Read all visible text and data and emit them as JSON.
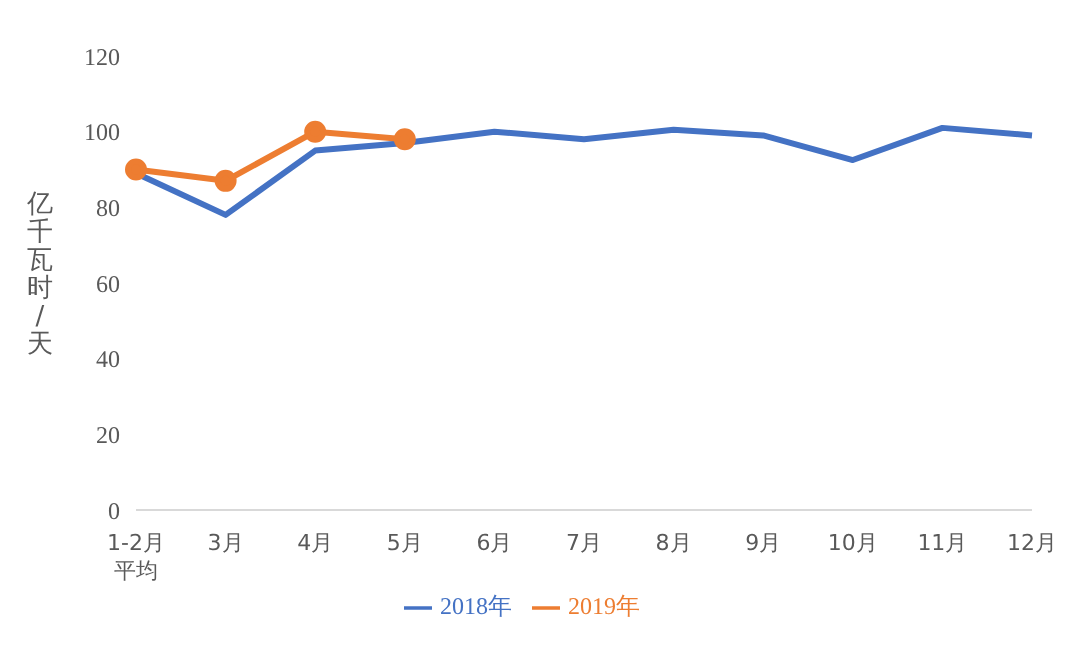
{
  "chart_data": {
    "type": "line",
    "ylabel": "亿千瓦时/天",
    "categories": [
      "1-2月平均",
      "3月",
      "4月",
      "5月",
      "6月",
      "7月",
      "8月",
      "9月",
      "10月",
      "11月",
      "12月"
    ],
    "ylim": [
      0,
      120
    ],
    "yticks": [
      0,
      20,
      40,
      60,
      80,
      100,
      120
    ],
    "legend": "bottom",
    "series": [
      {
        "name": "2018年",
        "color": "#4472c4",
        "marker": "none",
        "values": [
          89,
          78,
          95,
          97,
          100,
          98,
          100.5,
          99,
          92.5,
          101,
          99
        ]
      },
      {
        "name": "2019年",
        "color": "#ed7d31",
        "marker": "circle",
        "values": [
          90,
          87,
          100,
          98,
          null,
          null,
          null,
          null,
          null,
          null,
          null
        ]
      }
    ]
  }
}
